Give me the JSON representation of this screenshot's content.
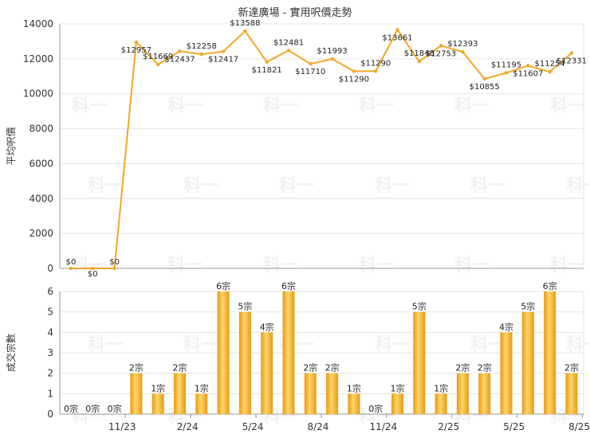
{
  "chart_data": [
    {
      "type": "line",
      "title": "新達廣場 - 實用呎價走勢",
      "ylabel": "平均呎價",
      "ylim": [
        0,
        14000
      ],
      "yticks": [
        0,
        2000,
        4000,
        6000,
        8000,
        10000,
        12000,
        14000
      ],
      "color": "#f5a623",
      "values": [
        0,
        0,
        0,
        12957,
        11669,
        12437,
        12258,
        12417,
        13588,
        11821,
        12481,
        11710,
        11993,
        11290,
        11290,
        13661,
        11848,
        12753,
        12393,
        10855,
        11195,
        11607,
        11254,
        12331
      ],
      "labels": [
        "$0",
        "$0",
        "$0",
        "$12957",
        "$11669",
        "$12437",
        "$12258",
        "$12417",
        "$13588",
        "$11821",
        "$12481",
        "$11710",
        "$11993",
        "$11290",
        "$11290",
        "$13661",
        "$11848",
        "$12753",
        "$12393",
        "$10855",
        "$11195",
        "$11607",
        "$11254",
        "$12331"
      ]
    },
    {
      "type": "bar",
      "ylabel": "成交宗數",
      "ylim": [
        0,
        6
      ],
      "yticks": [
        0,
        1,
        2,
        3,
        4,
        5,
        6
      ],
      "color": "#f5a623",
      "values": [
        0,
        0,
        0,
        2,
        1,
        2,
        1,
        6,
        5,
        4,
        6,
        2,
        2,
        1,
        0,
        1,
        5,
        1,
        2,
        2,
        4,
        5,
        6,
        2
      ],
      "labels": [
        "0宗",
        "0宗",
        "0宗",
        "2宗",
        "1宗",
        "2宗",
        "1宗",
        "6宗",
        "5宗",
        "4宗",
        "6宗",
        "2宗",
        "2宗",
        "1宗",
        "0宗",
        "1宗",
        "5宗",
        "1宗",
        "2宗",
        "2宗",
        "4宗",
        "5宗",
        "6宗",
        "2宗"
      ],
      "xticks": [
        {
          "index": 2,
          "label": "11/23"
        },
        {
          "index": 5,
          "label": "2/24"
        },
        {
          "index": 8,
          "label": "5/24"
        },
        {
          "index": 11,
          "label": "8/24"
        },
        {
          "index": 14,
          "label": "11/24"
        },
        {
          "index": 17,
          "label": "2/25"
        },
        {
          "index": 20,
          "label": "5/25"
        },
        {
          "index": 23,
          "label": "8/25"
        }
      ]
    }
  ],
  "watermark": "科一"
}
